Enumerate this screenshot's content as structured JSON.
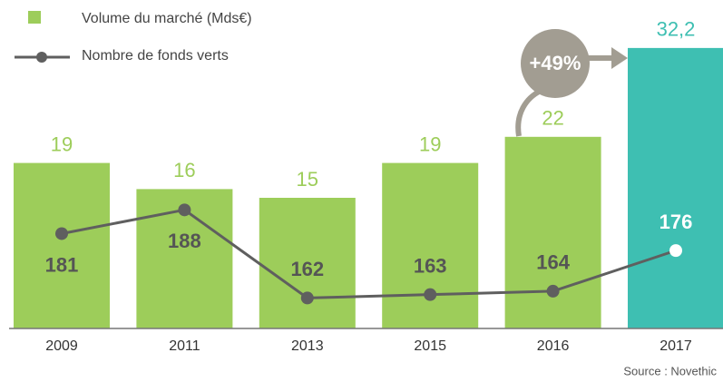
{
  "chart_data": {
    "type": "bar",
    "categories": [
      "2009",
      "2011",
      "2013",
      "2015",
      "2016",
      "2017"
    ],
    "series": [
      {
        "name": "Volume du marché (Mds€)",
        "type": "bar",
        "color": "#9dcd5a",
        "colors": [
          "#9dcd5a",
          "#9dcd5a",
          "#9dcd5a",
          "#9dcd5a",
          "#9dcd5a",
          "#3ebfb2"
        ],
        "values": [
          19,
          16,
          15,
          19,
          22,
          32.2
        ],
        "value_labels": [
          "19",
          "16",
          "15",
          "19",
          "22",
          "32,2"
        ]
      },
      {
        "name": "Nombre de fonds verts",
        "type": "line",
        "axis": "y2",
        "color": "#5f5f5f",
        "values": [
          181,
          188,
          162,
          163,
          164,
          176
        ]
      }
    ],
    "ylim": [
      0,
      35
    ],
    "y2lim": [
      153,
      243
    ],
    "annotations": [
      "+49%"
    ],
    "source": "Source : Novethic"
  }
}
